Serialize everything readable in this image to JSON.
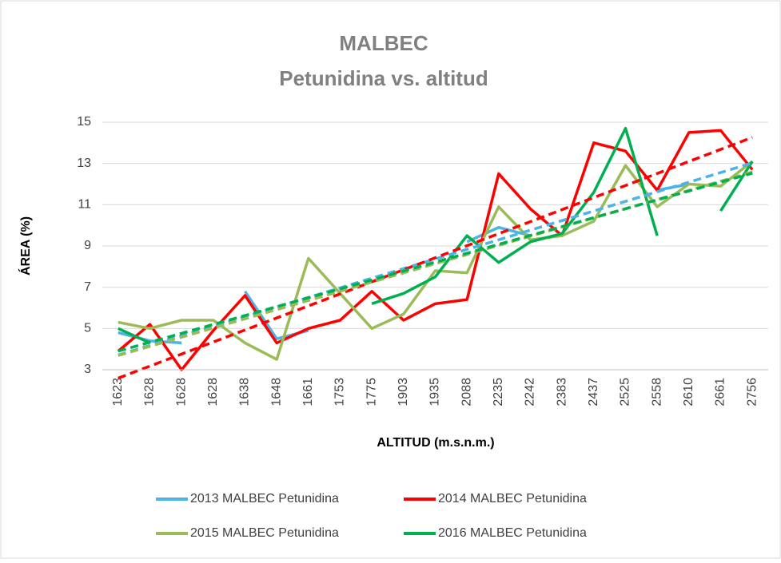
{
  "chart_data": {
    "type": "line",
    "title": "MALBEC",
    "subtitle": "Petunidina vs. altitud",
    "x_label": "ALTITUD (m.s.n.m.)",
    "y_label": "ÁREA (%)",
    "categories": [
      "1623",
      "1628",
      "1628",
      "1628",
      "1638",
      "1648",
      "1661",
      "1753",
      "1775",
      "1903",
      "1935",
      "2088",
      "2235",
      "2242",
      "2383",
      "2437",
      "2525",
      "2558",
      "2610",
      "2661",
      "2756"
    ],
    "series": [
      {
        "name": "2013 MALBEC Petunidina",
        "color": "#4bb3e6",
        "values": [
          4.8,
          4.4,
          4.3,
          null,
          6.8,
          4.5,
          4.9,
          null,
          null,
          null,
          null,
          9.2,
          9.9,
          9.5,
          null,
          null,
          null,
          11.7,
          12.0,
          null,
          13.3
        ]
      },
      {
        "name": "2014 MALBEC Petunidina",
        "color": "#ff0000",
        "values": [
          3.9,
          5.2,
          3.0,
          4.9,
          6.6,
          4.3,
          5.0,
          5.4,
          6.8,
          5.4,
          6.2,
          6.4,
          12.5,
          10.8,
          9.5,
          14.0,
          13.6,
          11.7,
          14.5,
          14.6,
          12.7
        ]
      },
      {
        "name": "2015 MALBEC Petunidina",
        "color": "#9bbb59",
        "values": [
          5.3,
          5.0,
          5.4,
          5.4,
          4.3,
          3.5,
          8.4,
          6.7,
          5.0,
          5.7,
          7.8,
          7.7,
          10.9,
          9.3,
          9.5,
          10.2,
          12.9,
          10.9,
          12.0,
          11.9,
          13.1
        ]
      },
      {
        "name": "2016 MALBEC Petunidina",
        "color": "#00b050",
        "values": [
          5.0,
          4.3,
          null,
          null,
          null,
          null,
          null,
          null,
          6.2,
          6.7,
          7.5,
          9.5,
          8.2,
          9.2,
          9.6,
          11.6,
          14.7,
          9.5,
          null,
          10.7,
          13.1
        ]
      }
    ],
    "ylim": [
      3,
      15
    ],
    "yticks": [
      3,
      5,
      7,
      9,
      11,
      13,
      15
    ],
    "grid": true,
    "trendline": "linear",
    "legend": "bottom"
  }
}
